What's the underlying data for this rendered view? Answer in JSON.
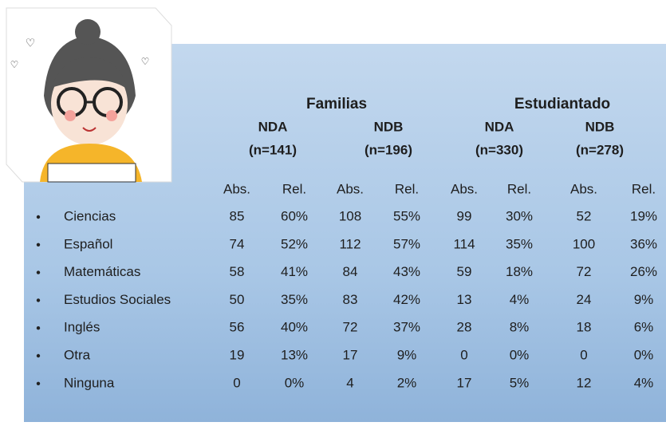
{
  "header": {
    "groups": [
      {
        "title": "Familias",
        "subgroups": [
          {
            "name": "NDA",
            "n": "(n=141)"
          },
          {
            "name": "NDB",
            "n": "(n=196)"
          }
        ]
      },
      {
        "title": "Estudiantado",
        "subgroups": [
          {
            "name": "NDA",
            "n": "(n=330)"
          },
          {
            "name": "NDB",
            "n": "(n=278)"
          }
        ]
      }
    ],
    "columns": [
      "Abs.",
      "Rel.",
      "Abs.",
      "Rel.",
      "Abs.",
      "Rel.",
      "Abs.",
      "Rel."
    ]
  },
  "table": {
    "rows": [
      {
        "label": "Ciencias",
        "cells": [
          "85",
          "60%",
          "108",
          "55%",
          "99",
          "30%",
          "52",
          "19%"
        ]
      },
      {
        "label": "Español",
        "cells": [
          "74",
          "52%",
          "112",
          "57%",
          "114",
          "35%",
          "100",
          "36%"
        ]
      },
      {
        "label": "Matemáticas",
        "cells": [
          "58",
          "41%",
          "84",
          "43%",
          "59",
          "18%",
          "72",
          "26%"
        ]
      },
      {
        "label": "Estudios Sociales",
        "cells": [
          "50",
          "35%",
          "83",
          "42%",
          "13",
          "4%",
          "24",
          "9%"
        ]
      },
      {
        "label": "Inglés",
        "cells": [
          "56",
          "40%",
          "72",
          "37%",
          "28",
          "8%",
          "18",
          "6%"
        ]
      },
      {
        "label": "Otra",
        "cells": [
          "19",
          "13%",
          "17",
          "9%",
          "0",
          "0%",
          "0",
          "0%"
        ]
      },
      {
        "label": "Ninguna",
        "cells": [
          "0",
          "0%",
          "4",
          "2%",
          "17",
          "5%",
          "12",
          "4%"
        ]
      }
    ]
  }
}
